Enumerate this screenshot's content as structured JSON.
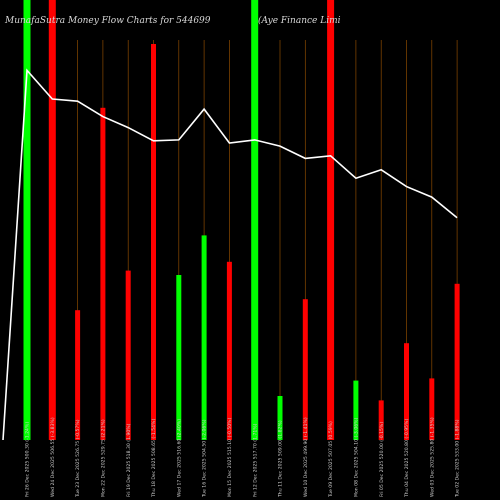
{
  "chart_data": {
    "type": "bar",
    "title": "MunafaSutra  Money Flow  Charts for 544699",
    "title_right": "(Aye   Finance   Limi",
    "categories": [
      "Fri 26 Dec 2025 500.30 (-1.24%)",
      "Wed 24 Dec 2025 506.55 (-3.83%)",
      "Tue 23 Dec 2025 526.75 (-0.57%)",
      "Mon 22 Dec 2025 529.75 (2.21%)",
      "Fri 19 Dec 2025 518.30 (1.90%)",
      "Thu 18 Dec 2025 508.65 (-1.54%)",
      "Wed 17 Dec 2025 516.60 (2.40%)",
      "Tue 16 Dec 2025 504.50 (-2.06%)",
      "Mon 15 Dec 2025 515.10 (-0.50%)",
      "Fri 12 Dec 2025 517.70 (1.71%)",
      "Thu 11 Dec 2025 509.00 (1.82%)",
      "Wed 10 Dec 2025 499.90 (-1.41%)",
      "Tue 09 Dec 2025 507.05 (0.59%)",
      "Mon 08 Dec 2025 504.10 (-3.06%)",
      "Fri 05 Dec 2025 520.00 (-0.15%)",
      "Thu 04 Dec 2025 520.80 (-0.95%)",
      "Wed 03 Dec 2025 525.80 (-1.35%)",
      "Tue 02 Dec 2025 533.00 (-1.88%)"
    ],
    "flow": [
      "green",
      "red",
      "red",
      "red",
      "red",
      "red",
      "green",
      "green",
      "red",
      "green",
      "green",
      "red",
      "red",
      "green",
      "red",
      "red",
      "red",
      "red"
    ],
    "volume_relative": [
      1.0,
      1.0,
      0.295,
      0.755,
      0.385,
      0.9,
      0.375,
      0.465,
      0.405,
      1.0,
      0.1,
      0.32,
      1.0,
      0.135,
      0.09,
      0.22,
      0.14,
      0.355
    ],
    "price_relative": [
      0.84,
      0.775,
      0.77,
      0.735,
      0.71,
      0.68,
      0.682,
      0.752,
      0.675,
      0.682,
      0.668,
      0.64,
      0.646,
      0.595,
      0.614,
      0.576,
      0.552,
      0.505
    ],
    "colors": {
      "background": "#000000",
      "green": "#00ff00",
      "red": "#ff0000",
      "price_line": "#ffffff",
      "guide": "#8b4a00"
    }
  }
}
